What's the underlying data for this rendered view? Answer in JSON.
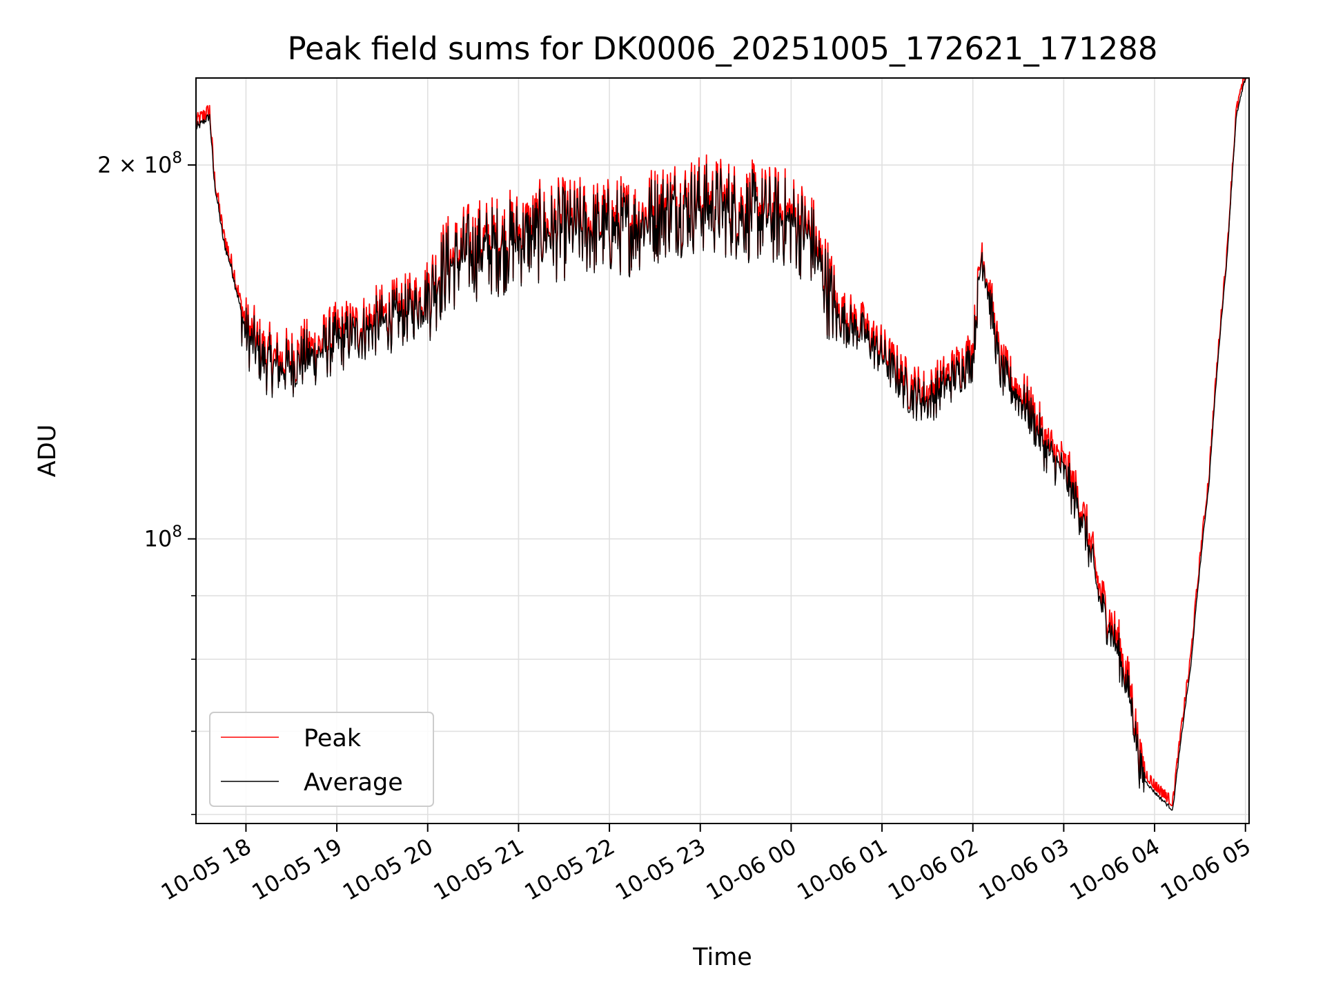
{
  "chart_data": {
    "type": "line",
    "title": "Peak field sums for DK0006_20251005_172621_171288",
    "xlabel": "Time",
    "ylabel": "ADU",
    "yscale": "log",
    "ylim": [
      59000000,
      235000000
    ],
    "xlim_hours": [
      17.45,
      29.04
    ],
    "x_ticks": [
      {
        "label": "10-05 18",
        "hour": 18
      },
      {
        "label": "10-05 19",
        "hour": 19
      },
      {
        "label": "10-05 20",
        "hour": 20
      },
      {
        "label": "10-05 21",
        "hour": 21
      },
      {
        "label": "10-05 22",
        "hour": 22
      },
      {
        "label": "10-05 23",
        "hour": 23
      },
      {
        "label": "10-06 00",
        "hour": 24
      },
      {
        "label": "10-06 01",
        "hour": 25
      },
      {
        "label": "10-06 02",
        "hour": 26
      },
      {
        "label": "10-06 03",
        "hour": 27
      },
      {
        "label": "10-06 04",
        "hour": 28
      },
      {
        "label": "10-06 05",
        "hour": 29
      }
    ],
    "y_ticks_major": [
      {
        "value": 100000000,
        "base": "10",
        "exp": "8",
        "coef": ""
      },
      {
        "value": 200000000,
        "base": "10",
        "exp": "8",
        "coef": "2 × "
      }
    ],
    "y_ticks_minor": [
      60000000,
      70000000,
      80000000,
      90000000
    ],
    "grid": true,
    "legend_position": "lower-left",
    "series": [
      {
        "name": "Peak",
        "color": "#ff0000",
        "note": "nearly identical to Average; slightly higher on spikes",
        "x_hours": [
          17.45,
          17.6,
          17.65,
          17.75,
          17.85,
          17.95,
          18.0,
          18.2,
          18.4,
          18.6,
          18.8,
          19.0,
          19.2,
          19.4,
          19.6,
          19.8,
          20.0,
          20.2,
          20.5,
          20.8,
          21.0,
          21.3,
          21.6,
          22.0,
          22.3,
          22.5,
          22.7,
          23.0,
          23.3,
          23.6,
          24.0,
          24.2,
          24.5,
          24.8,
          25.0,
          25.3,
          25.5,
          25.8,
          26.0,
          26.1,
          26.3,
          26.6,
          26.8,
          27.0,
          27.2,
          27.4,
          27.6,
          27.75,
          27.85,
          28.0,
          28.2,
          28.4,
          28.6,
          28.8,
          28.9,
          29.0
        ],
        "values": [
          215000000,
          220000000,
          195000000,
          175000000,
          165000000,
          153000000,
          147000000,
          140000000,
          138000000,
          140000000,
          142000000,
          145000000,
          147000000,
          149000000,
          151000000,
          153000000,
          158000000,
          166000000,
          171000000,
          173000000,
          175000000,
          177000000,
          178000000,
          178000000,
          180000000,
          183000000,
          186000000,
          186000000,
          185000000,
          183000000,
          181000000,
          176000000,
          152000000,
          147000000,
          141000000,
          132000000,
          130000000,
          136000000,
          141000000,
          171000000,
          137000000,
          128000000,
          119000000,
          114000000,
          105000000,
          90000000,
          82000000,
          74000000,
          65000000,
          63000000,
          61000000,
          80000000,
          112000000,
          170000000,
          220000000,
          235000000
        ]
      },
      {
        "name": "Average",
        "color": "#000000",
        "note": "main trace",
        "x_hours": [
          17.45,
          17.6,
          17.65,
          17.75,
          17.85,
          17.95,
          18.0,
          18.2,
          18.4,
          18.6,
          18.8,
          19.0,
          19.2,
          19.4,
          19.6,
          19.8,
          20.0,
          20.2,
          20.5,
          20.8,
          21.0,
          21.3,
          21.6,
          22.0,
          22.3,
          22.5,
          22.7,
          23.0,
          23.3,
          23.6,
          24.0,
          24.2,
          24.5,
          24.8,
          25.0,
          25.3,
          25.5,
          25.8,
          26.0,
          26.1,
          26.3,
          26.6,
          26.8,
          27.0,
          27.2,
          27.4,
          27.6,
          27.75,
          27.85,
          28.0,
          28.2,
          28.4,
          28.6,
          28.8,
          28.9,
          29.0
        ],
        "values": [
          214000000,
          219000000,
          194000000,
          174000000,
          164000000,
          152000000,
          146000000,
          139000000,
          137000000,
          139000000,
          141000000,
          144000000,
          146000000,
          148000000,
          150000000,
          152000000,
          157000000,
          165000000,
          170000000,
          172000000,
          174000000,
          176000000,
          177000000,
          177000000,
          179000000,
          182000000,
          185000000,
          185000000,
          184000000,
          182000000,
          180000000,
          175000000,
          151000000,
          146000000,
          140000000,
          131000000,
          129000000,
          135000000,
          140000000,
          170000000,
          136000000,
          127000000,
          118000000,
          113000000,
          104000000,
          89000000,
          81000000,
          73000000,
          64500000,
          62500000,
          60500000,
          79000000,
          111000000,
          169000000,
          219000000,
          235000000
        ]
      }
    ]
  }
}
